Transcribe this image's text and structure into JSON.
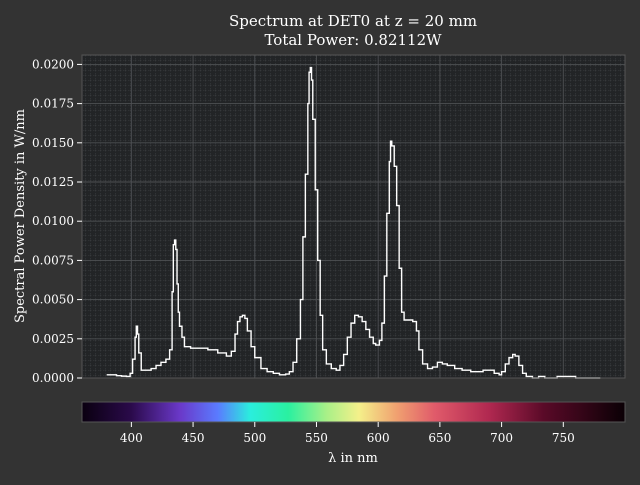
{
  "chart_data": {
    "type": "line",
    "title": "Spectrum at DET0 at z = 20 mm",
    "subtitle": "Total Power: 0.82112W",
    "xlabel": "λ in nm",
    "ylabel": "Spectral Power Density in W/nm",
    "xlim": [
      360,
      800
    ],
    "ylim": [
      0,
      0.0206
    ],
    "grid": true,
    "x_ticks": [
      "400",
      "450",
      "500",
      "550",
      "600",
      "650",
      "700",
      "750"
    ],
    "y_ticks": [
      "0.0000",
      "0.0025",
      "0.0050",
      "0.0075",
      "0.0100",
      "0.0125",
      "0.0150",
      "0.0175",
      "0.0200"
    ],
    "colorbar": "wavelength colormap (violet to red to black)",
    "series": [
      {
        "color": "#ffffff",
        "points": [
          [
            380,
            0.0002
          ],
          [
            384,
            0.0002
          ],
          [
            388,
            0.00015
          ],
          [
            392,
            0.00012
          ],
          [
            396,
            0.0001
          ],
          [
            399,
            0.0003
          ],
          [
            401,
            0.0012
          ],
          [
            403,
            0.0026
          ],
          [
            404,
            0.0033
          ],
          [
            405,
            0.0028
          ],
          [
            406,
            0.0016
          ],
          [
            408,
            0.0005
          ],
          [
            412,
            0.0005
          ],
          [
            416,
            0.0006
          ],
          [
            420,
            0.0008
          ],
          [
            424,
            0.001
          ],
          [
            428,
            0.0012
          ],
          [
            431,
            0.0018
          ],
          [
            433,
            0.0055
          ],
          [
            434,
            0.0085
          ],
          [
            435,
            0.0088
          ],
          [
            436,
            0.0082
          ],
          [
            437,
            0.006
          ],
          [
            438,
            0.0042
          ],
          [
            439,
            0.0033
          ],
          [
            441,
            0.0026
          ],
          [
            443,
            0.002
          ],
          [
            448,
            0.0019
          ],
          [
            455,
            0.0019
          ],
          [
            462,
            0.0018
          ],
          [
            470,
            0.0016
          ],
          [
            477,
            0.0014
          ],
          [
            481,
            0.0017
          ],
          [
            484,
            0.0028
          ],
          [
            486,
            0.0036
          ],
          [
            488,
            0.0039
          ],
          [
            490,
            0.004
          ],
          [
            492,
            0.0038
          ],
          [
            494,
            0.003
          ],
          [
            497,
            0.002
          ],
          [
            500,
            0.0013
          ],
          [
            505,
            0.0006
          ],
          [
            510,
            0.0004
          ],
          [
            515,
            0.0003
          ],
          [
            520,
            0.0002
          ],
          [
            525,
            0.00025
          ],
          [
            528,
            0.0004
          ],
          [
            531,
            0.001
          ],
          [
            534,
            0.0025
          ],
          [
            537,
            0.005
          ],
          [
            539,
            0.009
          ],
          [
            541,
            0.013
          ],
          [
            543,
            0.0175
          ],
          [
            544,
            0.0195
          ],
          [
            545,
            0.0198
          ],
          [
            546,
            0.019
          ],
          [
            547,
            0.0165
          ],
          [
            549,
            0.012
          ],
          [
            551,
            0.0075
          ],
          [
            553,
            0.004
          ],
          [
            555,
            0.0018
          ],
          [
            558,
            0.0009
          ],
          [
            562,
            0.0006
          ],
          [
            566,
            0.0005
          ],
          [
            569,
            0.0008
          ],
          [
            572,
            0.0015
          ],
          [
            575,
            0.0026
          ],
          [
            578,
            0.0035
          ],
          [
            581,
            0.004
          ],
          [
            584,
            0.0039
          ],
          [
            587,
            0.0036
          ],
          [
            590,
            0.0031
          ],
          [
            593,
            0.0026
          ],
          [
            596,
            0.0022
          ],
          [
            598,
            0.0021
          ],
          [
            601,
            0.0024
          ],
          [
            603,
            0.0035
          ],
          [
            605,
            0.0065
          ],
          [
            607,
            0.0105
          ],
          [
            609,
            0.0138
          ],
          [
            610,
            0.0151
          ],
          [
            611,
            0.0148
          ],
          [
            613,
            0.0135
          ],
          [
            615,
            0.011
          ],
          [
            617,
            0.007
          ],
          [
            619,
            0.0042
          ],
          [
            621,
            0.0037
          ],
          [
            624,
            0.0037
          ],
          [
            628,
            0.0036
          ],
          [
            631,
            0.003
          ],
          [
            633,
            0.0018
          ],
          [
            636,
            0.0009
          ],
          [
            640,
            0.0006
          ],
          [
            644,
            0.0007
          ],
          [
            648,
            0.001
          ],
          [
            652,
            0.0009
          ],
          [
            656,
            0.0008
          ],
          [
            662,
            0.0006
          ],
          [
            668,
            0.0005
          ],
          [
            675,
            0.0004
          ],
          [
            680,
            0.0004
          ],
          [
            685,
            0.0005
          ],
          [
            690,
            0.0005
          ],
          [
            694,
            0.0003
          ],
          [
            698,
            0.0002
          ],
          [
            700,
            0.0004
          ],
          [
            703,
            0.0009
          ],
          [
            706,
            0.0013
          ],
          [
            709,
            0.0015
          ],
          [
            711,
            0.0014
          ],
          [
            714,
            0.0008
          ],
          [
            717,
            0.0003
          ],
          [
            720,
            0.0001
          ],
          [
            725,
            0.0
          ],
          [
            730,
            0.0001
          ],
          [
            735,
            0.0
          ],
          [
            740,
            0.0
          ],
          [
            745,
            0.0001
          ],
          [
            755,
            0.0001
          ],
          [
            760,
            0.0
          ],
          [
            770,
            0.0
          ],
          [
            780,
            0.0
          ]
        ]
      }
    ]
  }
}
